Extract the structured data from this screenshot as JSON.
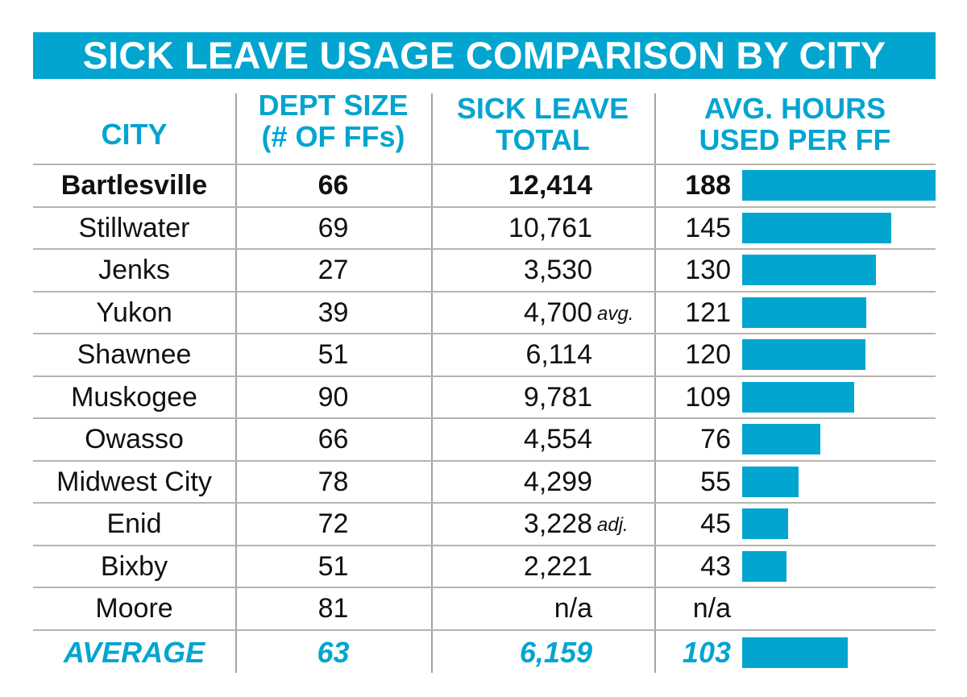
{
  "title": "SICK LEAVE USAGE COMPARISON BY CITY",
  "colors": {
    "accent": "#02a5cf",
    "text": "#111111",
    "grid": "#b8b3ad"
  },
  "headers": {
    "city": "CITY",
    "dept_size": [
      "DEPT SIZE",
      "(# OF FFs)"
    ],
    "sick_leave_total": [
      "SICK LEAVE",
      "TOTAL"
    ],
    "avg_hours": [
      "AVG. HOURS",
      "USED PER FF"
    ]
  },
  "rows": [
    {
      "city": "Bartlesville",
      "dept_size": "66",
      "total": "12,414",
      "note": "",
      "hours": "188",
      "highlight": true
    },
    {
      "city": "Stillwater",
      "dept_size": "69",
      "total": "10,761",
      "note": "",
      "hours": "145"
    },
    {
      "city": "Jenks",
      "dept_size": "27",
      "total": "3,530",
      "note": "",
      "hours": "130"
    },
    {
      "city": "Yukon",
      "dept_size": "39",
      "total": "4,700",
      "note": "avg.",
      "hours": "121"
    },
    {
      "city": "Shawnee",
      "dept_size": "51",
      "total": "6,114",
      "note": "",
      "hours": "120"
    },
    {
      "city": "Muskogee",
      "dept_size": "90",
      "total": "9,781",
      "note": "",
      "hours": "109"
    },
    {
      "city": "Owasso",
      "dept_size": "66",
      "total": "4,554",
      "note": "",
      "hours": "76"
    },
    {
      "city": "Midwest City",
      "dept_size": "78",
      "total": "4,299",
      "note": "",
      "hours": "55"
    },
    {
      "city": "Enid",
      "dept_size": "72",
      "total": "3,228",
      "note": "adj.",
      "hours": "45"
    },
    {
      "city": "Bixby",
      "dept_size": "51",
      "total": "2,221",
      "note": "",
      "hours": "43"
    },
    {
      "city": "Moore",
      "dept_size": "81",
      "total": "n/a",
      "note": "",
      "hours": "n/a"
    }
  ],
  "average": {
    "label": "AVERAGE",
    "dept_size": "63",
    "total": "6,159",
    "hours": "103"
  },
  "chart_data": {
    "type": "table",
    "title": "SICK LEAVE USAGE COMPARISON BY CITY",
    "columns": [
      "CITY",
      "DEPT SIZE (# OF FFs)",
      "SICK LEAVE TOTAL",
      "AVG. HOURS USED PER FF"
    ],
    "categories": [
      "Bartlesville",
      "Stillwater",
      "Jenks",
      "Yukon",
      "Shawnee",
      "Muskogee",
      "Owasso",
      "Midwest City",
      "Enid",
      "Bixby",
      "Moore",
      "AVERAGE"
    ],
    "series": [
      {
        "name": "Dept size (# of FFs)",
        "values": [
          66,
          69,
          27,
          39,
          51,
          90,
          66,
          78,
          72,
          51,
          81,
          63
        ]
      },
      {
        "name": "Sick leave total",
        "values": [
          12414,
          10761,
          3530,
          4700,
          6114,
          9781,
          4554,
          4299,
          3228,
          2221,
          null,
          6159
        ]
      },
      {
        "name": "Avg. hours used per FF",
        "values": [
          188,
          145,
          130,
          121,
          120,
          109,
          76,
          55,
          45,
          43,
          null,
          103
        ]
      }
    ],
    "annotations": {
      "Yukon": "avg.",
      "Enid": "adj."
    },
    "bar_series": "Avg. hours used per FF",
    "bar_max": 188
  }
}
